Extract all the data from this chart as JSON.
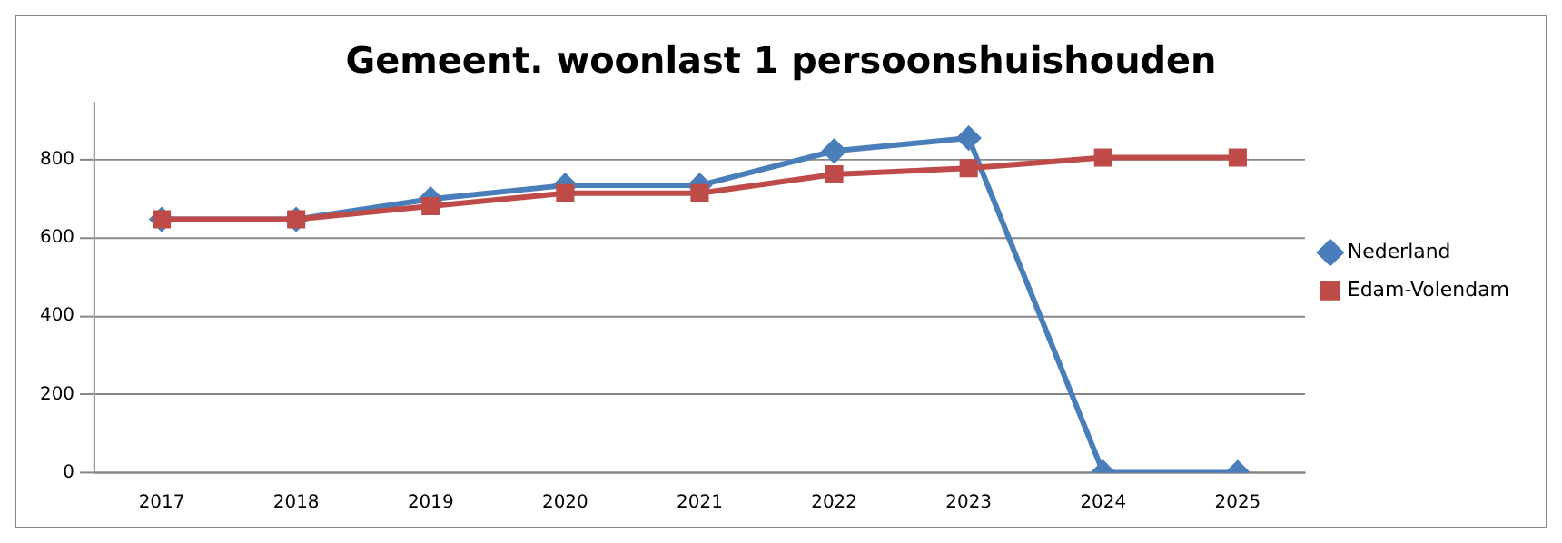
{
  "chart_data": {
    "type": "line",
    "title": "Gemeent. woonlast 1 persoonshuishouden",
    "categories": [
      "2017",
      "2018",
      "2019",
      "2020",
      "2021",
      "2022",
      "2023",
      "2024",
      "2025"
    ],
    "series": [
      {
        "name": "Nederland",
        "color": "#4a7ebb",
        "marker": "diamond",
        "values": [
          648,
          648,
          700,
          735,
          735,
          823,
          856,
          0,
          0
        ]
      },
      {
        "name": "Edam-Volendam",
        "color": "#be4b48",
        "marker": "square",
        "values": [
          648,
          648,
          682,
          715,
          715,
          763,
          779,
          806,
          806
        ]
      }
    ],
    "ylim": [
      0,
      946
    ],
    "yticks": [
      0,
      200,
      400,
      600,
      800
    ],
    "grid": "y",
    "legend": "right",
    "line_style": "solid"
  }
}
